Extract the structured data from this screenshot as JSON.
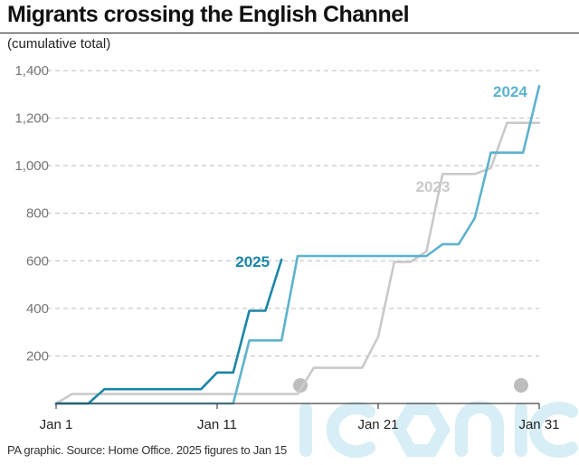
{
  "title": "Migrants crossing the English Channel",
  "subtitle": "(cumulative total)",
  "source": "PA graphic. Source: Home Office. 2025 figures to Jan 15",
  "watermark": "iconic",
  "colors": {
    "s2025": "#1b86a6",
    "s2024": "#5db2cd",
    "s2023": "#c9c9c9",
    "grid": "#bdbdbd",
    "axis": "#444444",
    "watermark": "#d7eef6"
  },
  "chart_data": {
    "type": "line",
    "title": "Migrants crossing the English Channel",
    "ylabel": "(cumulative total)",
    "xlabel": "",
    "xlim": [
      1,
      31
    ],
    "ylim": [
      0,
      1400
    ],
    "x_ticks": [
      1,
      11,
      21,
      31
    ],
    "x_tick_labels": [
      "Jan 1",
      "Jan 11",
      "Jan 21",
      "Jan 31"
    ],
    "y_ticks": [
      200,
      400,
      600,
      800,
      1000,
      1200,
      1400
    ],
    "y_tick_labels": [
      "200",
      "400",
      "600",
      "800",
      "1,000",
      "1,200",
      "1,400"
    ],
    "grid": true,
    "series": [
      {
        "name": "2023",
        "color": "#c9c9c9",
        "x": [
          1,
          2,
          3,
          4,
          5,
          6,
          7,
          8,
          9,
          10,
          11,
          12,
          13,
          14,
          15,
          16,
          17,
          18,
          19,
          20,
          21,
          22,
          23,
          24,
          25,
          26,
          27,
          28,
          29,
          30,
          31
        ],
        "y": [
          0,
          40,
          40,
          40,
          40,
          40,
          40,
          40,
          40,
          40,
          40,
          40,
          40,
          40,
          40,
          40,
          150,
          150,
          150,
          150,
          280,
          595,
          595,
          640,
          965,
          965,
          965,
          990,
          1180,
          1180,
          1180
        ]
      },
      {
        "name": "2024",
        "color": "#5db2cd",
        "x": [
          1,
          2,
          3,
          4,
          5,
          6,
          7,
          8,
          9,
          10,
          11,
          12,
          13,
          14,
          15,
          16,
          17,
          18,
          19,
          20,
          21,
          22,
          23,
          24,
          25,
          26,
          27,
          28,
          29,
          30,
          31
        ],
        "y": [
          0,
          0,
          0,
          0,
          0,
          0,
          0,
          0,
          0,
          0,
          0,
          0,
          265,
          265,
          265,
          620,
          620,
          620,
          620,
          620,
          620,
          620,
          620,
          620,
          670,
          670,
          780,
          1055,
          1055,
          1055,
          1335
        ]
      },
      {
        "name": "2025",
        "color": "#1b86a6",
        "x": [
          1,
          2,
          3,
          4,
          5,
          6,
          7,
          8,
          9,
          10,
          11,
          12,
          13,
          14,
          15
        ],
        "y": [
          0,
          0,
          0,
          60,
          60,
          60,
          60,
          60,
          60,
          60,
          130,
          130,
          390,
          390,
          605
        ]
      }
    ],
    "series_labels": [
      {
        "series": "2025",
        "text": "2025",
        "x": 13.2,
        "y": 575
      },
      {
        "series": "2024",
        "text": "2024",
        "x": 29.2,
        "y": 1290
      },
      {
        "series": "2023",
        "text": "2023",
        "x": 24.4,
        "y": 890
      }
    ]
  }
}
